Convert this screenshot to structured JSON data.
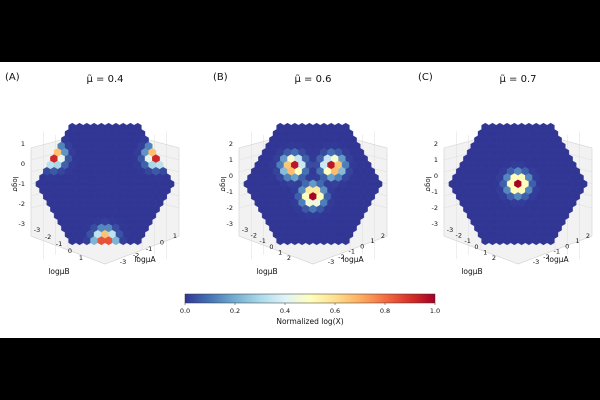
{
  "chart_data": [
    {
      "type": "heatmap",
      "panel_label": "(A)",
      "title": "μ̃ = 0.4",
      "xlabel": "logμA",
      "ylabel": "logμB",
      "zlabel": "logσ",
      "xticks": [
        "-3",
        "-2",
        "-1",
        "0",
        "1"
      ],
      "yticks": [
        "-3",
        "-2",
        "-1",
        "0",
        "1"
      ],
      "zticks": [
        "1",
        "0",
        "-1",
        "-2",
        "-3"
      ],
      "peaks": [
        {
          "u": -0.78,
          "v": -0.42,
          "peak": 1.0
        },
        {
          "u": 0.78,
          "v": -0.42,
          "peak": 1.0
        },
        {
          "u": 0.0,
          "v": 0.85,
          "peak": 1.0
        }
      ],
      "background": 0.0
    },
    {
      "type": "heatmap",
      "panel_label": "(B)",
      "title": "μ̃ = 0.6",
      "xlabel": "logμA",
      "ylabel": "logμB",
      "zlabel": "logσ",
      "xticks": [
        "-3",
        "-2",
        "-1",
        "0",
        "1",
        "2"
      ],
      "yticks": [
        "-3",
        "-2",
        "-1",
        "0",
        "1",
        "2"
      ],
      "zticks": [
        "2",
        "1",
        "0",
        "-1",
        "-2",
        "-3"
      ],
      "peaks": [
        {
          "u": -0.3,
          "v": -0.27,
          "peak": 1.0
        },
        {
          "u": 0.3,
          "v": -0.27,
          "peak": 1.0
        },
        {
          "u": 0.0,
          "v": 0.18,
          "peak": 1.0
        }
      ],
      "background": 0.0
    },
    {
      "type": "heatmap",
      "panel_label": "(C)",
      "title": "μ̃ = 0.7",
      "xlabel": "logμA",
      "ylabel": "logμB",
      "zlabel": "logσ",
      "xticks": [
        "-3",
        "-2",
        "-1",
        "0",
        "1",
        "2"
      ],
      "yticks": [
        "-3",
        "-2",
        "-1",
        "0",
        "1",
        "2"
      ],
      "zticks": [
        "2",
        "1",
        "0",
        "-1",
        "-2",
        "-3"
      ],
      "peaks": [
        {
          "u": 0.0,
          "v": 0.0,
          "peak": 1.0
        }
      ],
      "background": 0.0
    }
  ],
  "colorbar": {
    "label": "Normalized log(X)",
    "min": 0.0,
    "max": 1.0,
    "ticks": [
      "0.0",
      "0.2",
      "0.4",
      "0.6",
      "0.8",
      "1.0"
    ],
    "colormap": "RdYlBu_r"
  }
}
